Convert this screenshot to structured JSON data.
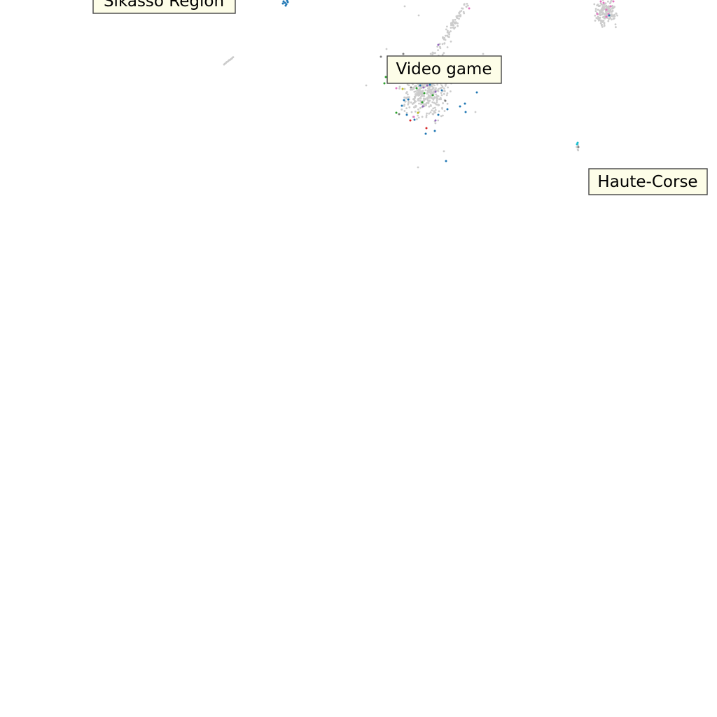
{
  "chart_data": {
    "type": "scatter",
    "title": "",
    "xlabel": "",
    "ylabel": "",
    "grid": false,
    "legend": "none",
    "background_point_color": "#cccccc",
    "annotations": [
      {
        "text": "Sikasso Region"
      },
      {
        "text": "Video game"
      },
      {
        "text": "Haute-Corse"
      }
    ],
    "clusters": [
      {
        "name": "central",
        "background": {
          "cx": 610,
          "cy": 130,
          "rx": 45,
          "ry": 55,
          "count": 420
        },
        "arm": {
          "x1": 610,
          "y1": 100,
          "x2": 665,
          "y2": 5,
          "count": 120
        },
        "highlighted": [
          {
            "x": 626,
            "y": 64,
            "color": "#9467bd"
          },
          {
            "x": 670,
            "y": 12,
            "color": "#e377c2"
          },
          {
            "x": 576,
            "y": 77,
            "color": "#7f7f7f"
          },
          {
            "x": 551,
            "y": 110,
            "color": "#2ca02c"
          },
          {
            "x": 549,
            "y": 119,
            "color": "#2ca02c"
          },
          {
            "x": 566,
            "y": 126,
            "color": "#e377c2"
          },
          {
            "x": 575,
            "y": 127,
            "color": "#bcbd22"
          },
          {
            "x": 587,
            "y": 125,
            "color": "#7f7f7f"
          },
          {
            "x": 595,
            "y": 126,
            "color": "#2ca02c"
          },
          {
            "x": 600,
            "y": 122,
            "color": "#1f77b4"
          },
          {
            "x": 605,
            "y": 125,
            "color": "#9467bd"
          },
          {
            "x": 610,
            "y": 122,
            "color": "#9467bd"
          },
          {
            "x": 614,
            "y": 121,
            "color": "#1f77b4"
          },
          {
            "x": 606,
            "y": 133,
            "color": "#2ca02c"
          },
          {
            "x": 618,
            "y": 136,
            "color": "#2ca02c"
          },
          {
            "x": 622,
            "y": 131,
            "color": "#9467bd"
          },
          {
            "x": 631,
            "y": 129,
            "color": "#1f77b4"
          },
          {
            "x": 583,
            "y": 142,
            "color": "#1f77b4"
          },
          {
            "x": 577,
            "y": 143,
            "color": "#1f77b4"
          },
          {
            "x": 603,
            "y": 146,
            "color": "#2ca02c"
          },
          {
            "x": 636,
            "y": 144,
            "color": "#7f7f7f"
          },
          {
            "x": 574,
            "y": 151,
            "color": "#1f77b4"
          },
          {
            "x": 604,
            "y": 152,
            "color": "#9467bd"
          },
          {
            "x": 639,
            "y": 156,
            "color": "#1f77b4"
          },
          {
            "x": 657,
            "y": 152,
            "color": "#1f77b4"
          },
          {
            "x": 664,
            "y": 148,
            "color": "#1f77b4"
          },
          {
            "x": 665,
            "y": 160,
            "color": "#1f77b4"
          },
          {
            "x": 566,
            "y": 161,
            "color": "#2ca02c"
          },
          {
            "x": 570,
            "y": 163,
            "color": "#7f7f7f"
          },
          {
            "x": 581,
            "y": 164,
            "color": "#1f77b4"
          },
          {
            "x": 597,
            "y": 161,
            "color": "#bcbd22"
          },
          {
            "x": 591,
            "y": 167,
            "color": "#e377c2"
          },
          {
            "x": 626,
            "y": 164,
            "color": "#1f77b4"
          },
          {
            "x": 586,
            "y": 172,
            "color": "#d62728"
          },
          {
            "x": 592,
            "y": 171,
            "color": "#1f77b4"
          },
          {
            "x": 622,
            "y": 172,
            "color": "#9467bd"
          },
          {
            "x": 609,
            "y": 183,
            "color": "#d62728"
          },
          {
            "x": 621,
            "y": 187,
            "color": "#1f77b4"
          },
          {
            "x": 608,
            "y": 191,
            "color": "#1f77b4"
          },
          {
            "x": 681,
            "y": 132,
            "color": "#1f77b4"
          },
          {
            "x": 637,
            "y": 230,
            "color": "#1f77b4"
          },
          {
            "x": 544,
            "y": 81,
            "color": "#7f7f7f"
          }
        ]
      },
      {
        "name": "top-right",
        "background": {
          "cx": 866,
          "cy": 18,
          "rx": 22,
          "ry": 28,
          "count": 170
        },
        "highlighted": [
          {
            "x": 853,
            "y": 20,
            "color": "#e377c2"
          },
          {
            "x": 862,
            "y": 4,
            "color": "#e377c2"
          },
          {
            "x": 866,
            "y": 14,
            "color": "#e377c2"
          },
          {
            "x": 869,
            "y": 20,
            "color": "#e377c2"
          },
          {
            "x": 872,
            "y": 9,
            "color": "#e377c2"
          },
          {
            "x": 866,
            "y": 24,
            "color": "#e377c2"
          },
          {
            "x": 870,
            "y": 22,
            "color": "#1f77b4"
          },
          {
            "x": 876,
            "y": 2,
            "color": "#e377c2"
          },
          {
            "x": 858,
            "y": 2,
            "color": "#e377c2"
          }
        ]
      },
      {
        "name": "blue-top",
        "highlighted": [
          {
            "x": 405,
            "y": 2,
            "color": "#1f77b4"
          },
          {
            "x": 407,
            "y": 4,
            "color": "#1f77b4"
          },
          {
            "x": 409,
            "y": 6,
            "color": "#1f77b4"
          },
          {
            "x": 411,
            "y": 3,
            "color": "#1f77b4"
          },
          {
            "x": 408,
            "y": 8,
            "color": "#1f77b4"
          },
          {
            "x": 404,
            "y": 5,
            "color": "#1f77b4"
          },
          {
            "x": 410,
            "y": 1,
            "color": "#1f77b4"
          }
        ]
      },
      {
        "name": "cyan-small",
        "background": {
          "cx": 825,
          "cy": 210,
          "rx": 2,
          "ry": 6,
          "count": 5
        },
        "highlighted": [
          {
            "x": 824,
            "y": 206,
            "color": "#17becf"
          },
          {
            "x": 826,
            "y": 210,
            "color": "#7f7f7f"
          },
          {
            "x": 825,
            "y": 204,
            "color": "#17becf"
          }
        ]
      },
      {
        "name": "left-streak",
        "background_line": {
          "x1": 320,
          "y1": 92,
          "x2": 333,
          "y2": 82,
          "count": 14
        }
      }
    ]
  }
}
